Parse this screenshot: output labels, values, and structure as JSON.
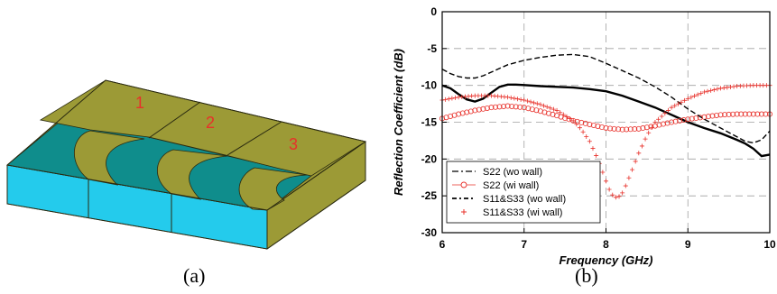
{
  "figure_a": {
    "caption": "(a)",
    "port_labels": [
      "1",
      "2",
      "3"
    ],
    "colors": {
      "top": "#9c9a36",
      "front": "#24cbec",
      "teal": "#0f8d8c",
      "patch": "#9c9a36",
      "edge": "#2a2a10",
      "label": "#e8302a"
    }
  },
  "figure_b": {
    "caption": "(b)"
  },
  "chart_data": {
    "type": "line",
    "xlabel": "Frequency (GHz)",
    "ylabel": "Reflection Coefficient (dB)",
    "xlim": [
      6,
      10
    ],
    "ylim": [
      -30,
      0
    ],
    "xticks": [
      6,
      7,
      8,
      9,
      10
    ],
    "yticks": [
      0,
      -5,
      -10,
      -15,
      -20,
      -25,
      -30
    ],
    "grid": true,
    "grid_style": "dashed",
    "legend_position": "bottom-left",
    "series": [
      {
        "name": "S22 (wo wall)",
        "color": "#000000",
        "style": "dash-dot",
        "x": [
          6.0,
          6.1,
          6.2,
          6.3,
          6.4,
          6.5,
          6.6,
          6.7,
          6.8,
          6.9,
          7.0,
          7.2,
          7.4,
          7.6,
          7.8,
          8.0,
          8.2,
          8.4,
          8.6,
          8.8,
          9.0,
          9.2,
          9.4,
          9.6,
          9.7,
          9.8,
          9.9,
          10.0
        ],
        "y": [
          -10.0,
          -10.4,
          -11.2,
          -11.9,
          -12.2,
          -11.8,
          -11.0,
          -10.2,
          -9.9,
          -9.9,
          -9.95,
          -10.1,
          -10.2,
          -10.3,
          -10.5,
          -10.8,
          -11.4,
          -12.2,
          -13.0,
          -14.0,
          -15.0,
          -15.8,
          -16.5,
          -17.4,
          -17.9,
          -18.6,
          -19.6,
          -19.4
        ]
      },
      {
        "name": "S22 (wi wall)",
        "color": "#e8302a",
        "style": "circle-markers",
        "x": [
          6.0,
          6.2,
          6.4,
          6.6,
          6.8,
          7.0,
          7.2,
          7.4,
          7.6,
          7.8,
          8.0,
          8.2,
          8.4,
          8.6,
          8.8,
          9.0,
          9.2,
          9.4,
          9.6,
          9.8,
          10.0
        ],
        "y": [
          -14.5,
          -13.9,
          -13.4,
          -13.0,
          -12.8,
          -13.0,
          -13.5,
          -14.1,
          -14.8,
          -15.3,
          -15.8,
          -16.0,
          -15.9,
          -15.5,
          -15.0,
          -14.6,
          -14.3,
          -14.0,
          -13.9,
          -13.9,
          -13.9
        ]
      },
      {
        "name": "S11&S33 (wo wall)",
        "color": "#000000",
        "style": "dashed",
        "x": [
          6.0,
          6.1,
          6.2,
          6.3,
          6.4,
          6.5,
          6.6,
          6.8,
          7.0,
          7.2,
          7.4,
          7.6,
          7.8,
          8.0,
          8.2,
          8.4,
          8.6,
          8.8,
          9.0,
          9.2,
          9.4,
          9.6,
          9.7,
          9.8,
          9.9,
          10.0
        ],
        "y": [
          -7.8,
          -8.4,
          -8.8,
          -9.0,
          -9.0,
          -8.7,
          -8.2,
          -7.2,
          -6.6,
          -6.2,
          -5.9,
          -5.8,
          -6.1,
          -7.0,
          -8.0,
          -9.0,
          -10.2,
          -11.6,
          -13.2,
          -14.6,
          -15.8,
          -17.0,
          -17.6,
          -17.8,
          -17.4,
          -16.2
        ]
      },
      {
        "name": "S11&S33 (wi wall)",
        "color": "#e8302a",
        "style": "plus-markers",
        "x": [
          6.0,
          6.2,
          6.4,
          6.6,
          6.8,
          7.0,
          7.2,
          7.4,
          7.6,
          7.7,
          7.8,
          7.9,
          8.0,
          8.05,
          8.1,
          8.15,
          8.2,
          8.25,
          8.3,
          8.4,
          8.5,
          8.6,
          8.8,
          9.0,
          9.2,
          9.4,
          9.6,
          9.8,
          10.0
        ],
        "y": [
          -12.0,
          -11.6,
          -11.4,
          -11.4,
          -11.6,
          -12.0,
          -12.6,
          -13.4,
          -14.8,
          -16.0,
          -17.6,
          -20.0,
          -23.0,
          -24.4,
          -25.2,
          -25.2,
          -24.6,
          -23.4,
          -22.0,
          -19.2,
          -16.8,
          -15.0,
          -13.0,
          -11.8,
          -10.9,
          -10.4,
          -10.1,
          -10.0,
          -10.0
        ]
      }
    ]
  }
}
